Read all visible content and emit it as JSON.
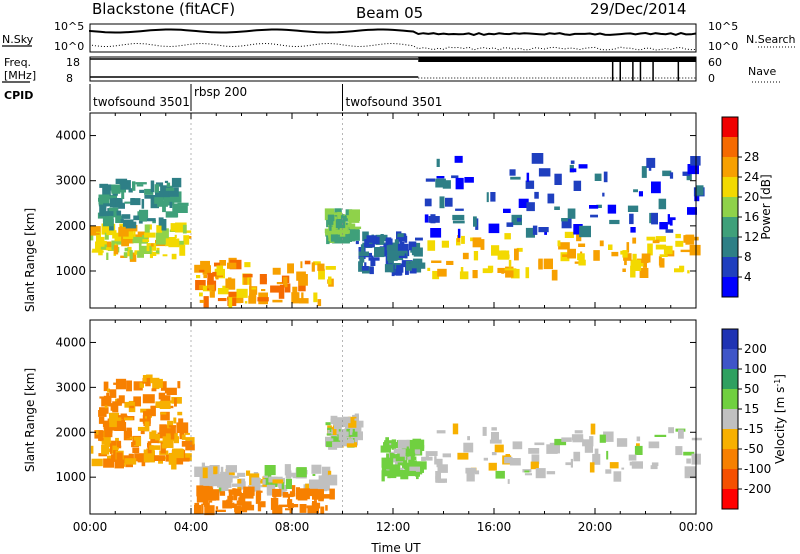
{
  "header": {
    "title": "Blackstone (fitACF)",
    "beam": "Beam 05",
    "date": "29/Dec/2014"
  },
  "panels": {
    "nsky_label": "N.Sky",
    "nsearch_label": "N.Search",
    "freq_label": "Freq.",
    "freq_unit": "[MHz]",
    "nave_label": "Nave",
    "cpid_label": "CPID",
    "nsky_ticks": [
      "10^5",
      "10^0"
    ],
    "nsearch_ticks": [
      "10^5",
      "10^0"
    ],
    "freq_ticks": [
      "18",
      "8"
    ],
    "nave_ticks": [
      "60",
      "0"
    ],
    "cpid_segments": [
      {
        "label": "twofsound 3501",
        "start": 0.0,
        "end": 4.0
      },
      {
        "label": "rbsp 200",
        "start": 4.0,
        "end": 10.0
      },
      {
        "label": "twofsound 3501",
        "start": 10.0,
        "end": 24.0
      }
    ]
  },
  "chart_data": [
    {
      "type": "heatmap",
      "name": "power",
      "ylabel": "Slant Range [km]",
      "xlabel": "",
      "ylim": [
        180,
        4500
      ],
      "xlim": [
        0,
        24
      ],
      "yticks": [
        "1000",
        "2000",
        "3000",
        "4000"
      ],
      "colorbar": {
        "label": "Power [dB]",
        "ticks": [
          "4",
          "8",
          "12",
          "16",
          "20",
          "24",
          "28"
        ],
        "colors": [
          "#0000ff",
          "#1f3fbf",
          "#2e7f86",
          "#3fa07a",
          "#8fd24a",
          "#f3d900",
          "#f7a000",
          "#f56a00",
          "#f00000"
        ]
      },
      "regions": [
        {
          "t0": 0.0,
          "t1": 3.8,
          "r0": 1300,
          "r1": 2000,
          "level": 22
        },
        {
          "t0": 0.3,
          "t1": 3.5,
          "r0": 2000,
          "r1": 3000,
          "level": 12
        },
        {
          "t0": 4.0,
          "t1": 9.5,
          "r0": 300,
          "r1": 1200,
          "level": 26
        },
        {
          "t0": 9.3,
          "t1": 10.3,
          "r0": 1700,
          "r1": 2300,
          "level": 16
        },
        {
          "t0": 10.5,
          "t1": 13.0,
          "r0": 1000,
          "r1": 1800,
          "level": 8
        },
        {
          "t0": 13.0,
          "t1": 24.0,
          "r0": 900,
          "r1": 1800,
          "level": 24
        },
        {
          "t0": 13.0,
          "t1": 24.0,
          "r0": 1800,
          "r1": 3500,
          "level": 6
        }
      ]
    },
    {
      "type": "heatmap",
      "name": "velocity",
      "ylabel": "Slant Range [km]",
      "xlabel": "Time UT",
      "ylim": [
        180,
        4500
      ],
      "xlim": [
        0,
        24
      ],
      "yticks": [
        "1000",
        "2000",
        "3000",
        "4000"
      ],
      "xticks": [
        "00:00",
        "04:00",
        "08:00",
        "12:00",
        "16:00",
        "20:00",
        "00:00"
      ],
      "colorbar": {
        "label": "Velocity [m s",
        "label_sup": "-1",
        "label_end": "]",
        "ticks": [
          "200",
          "100",
          "50",
          "15",
          "-15",
          "-50",
          "-100",
          "-200"
        ],
        "colors": [
          "#1f33b3",
          "#3f55c8",
          "#2fa060",
          "#70d040",
          "#c0c0c0",
          "#f7b000",
          "#f78000",
          "#f55000",
          "#ff0000"
        ]
      },
      "regions": [
        {
          "t0": 0.0,
          "t1": 3.8,
          "r0": 1300,
          "r1": 2000,
          "level": -50
        },
        {
          "t0": 0.3,
          "t1": 3.5,
          "r0": 2000,
          "r1": 3200,
          "level": -60
        },
        {
          "t0": 4.0,
          "t1": 9.5,
          "r0": 700,
          "r1": 1200,
          "level": 0
        },
        {
          "t0": 4.0,
          "t1": 9.5,
          "r0": 250,
          "r1": 700,
          "level": -70
        },
        {
          "t0": 9.3,
          "t1": 10.5,
          "r0": 1700,
          "r1": 2300,
          "level": 0
        },
        {
          "t0": 11.5,
          "t1": 13.0,
          "r0": 1000,
          "r1": 1800,
          "level": 30
        },
        {
          "t0": 13.0,
          "t1": 24.0,
          "r0": 900,
          "r1": 2100,
          "level": 0
        }
      ]
    }
  ]
}
